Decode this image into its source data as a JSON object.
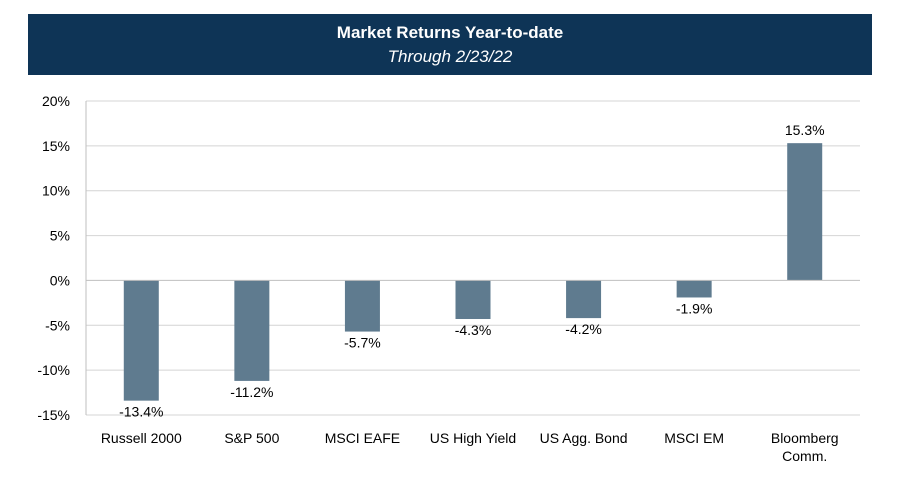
{
  "chart_data": {
    "type": "bar",
    "title": "Market Returns Year-to-date",
    "subtitle": "Through 2/23/22",
    "categories": [
      "Russell 2000",
      "S&P 500",
      "MSCI EAFE",
      "US High Yield",
      "US Agg. Bond",
      "MSCI EM",
      "Bloomberg Comm."
    ],
    "category_label_lines": [
      [
        "Russell 2000"
      ],
      [
        "S&P 500"
      ],
      [
        "MSCI EAFE"
      ],
      [
        "US High Yield"
      ],
      [
        "US Agg. Bond"
      ],
      [
        "MSCI EM"
      ],
      [
        "Bloomberg",
        "Comm."
      ]
    ],
    "values": [
      -13.4,
      -11.2,
      -5.7,
      -4.3,
      -4.2,
      -1.9,
      15.3
    ],
    "data_labels": [
      "-13.4%",
      "-11.2%",
      "-5.7%",
      "-4.3%",
      "-4.2%",
      "-1.9%",
      "15.3%"
    ],
    "ylim": [
      -15,
      20
    ],
    "yticks": [
      20,
      15,
      10,
      5,
      0,
      -5,
      -10,
      -15
    ],
    "ytick_labels": [
      "20%",
      "15%",
      "10%",
      "5%",
      "0%",
      "-5%",
      "-10%",
      "-15%"
    ],
    "xlabel": "",
    "ylabel": "",
    "grid": true,
    "legend": false,
    "bar_color": "#5f7b8f",
    "header_color": "#0e3456"
  }
}
